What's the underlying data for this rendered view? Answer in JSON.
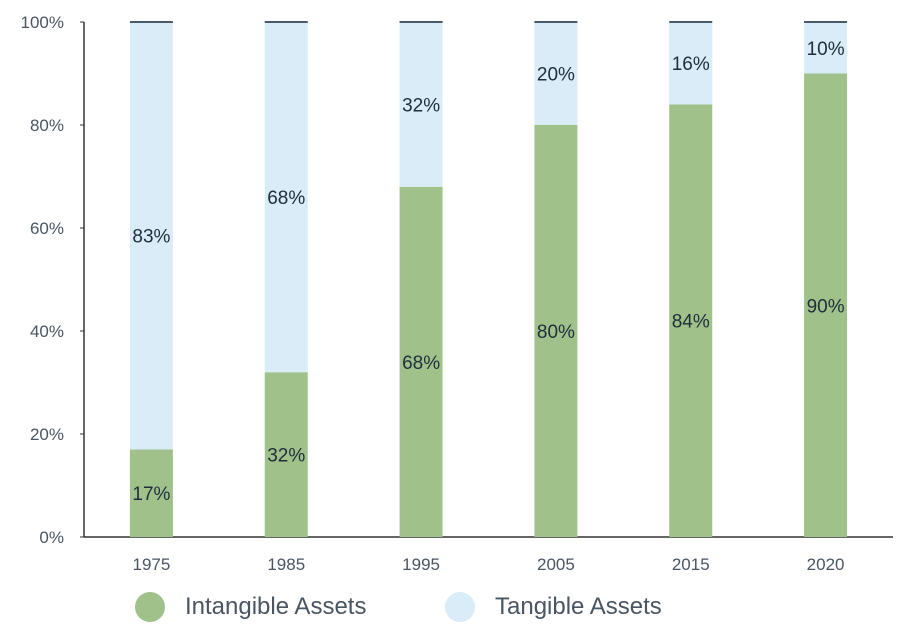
{
  "chart_data": {
    "type": "bar",
    "stacked": true,
    "title": "",
    "xlabel": "",
    "ylabel": "",
    "categories": [
      "1975",
      "1985",
      "1995",
      "2005",
      "2015",
      "2020"
    ],
    "series": [
      {
        "name": "Intangible Assets",
        "values": [
          17,
          32,
          68,
          80,
          84,
          90
        ],
        "labels": [
          "17%",
          "32%",
          "68%",
          "80%",
          "84%",
          "90%"
        ],
        "color": "#a0c28a"
      },
      {
        "name": "Tangible Assets",
        "values": [
          83,
          68,
          32,
          20,
          16,
          10
        ],
        "labels": [
          "83%",
          "68%",
          "32%",
          "20%",
          "16%",
          "10%"
        ],
        "color": "#d9ecf7"
      }
    ],
    "ylim": [
      0,
      100
    ],
    "yticks": [
      0,
      20,
      40,
      60,
      80,
      100
    ],
    "ytick_labels": [
      "0%",
      "20%",
      "40%",
      "60%",
      "80%",
      "100%"
    ],
    "grid": false,
    "legend_position": "bottom",
    "colors": {
      "axis": "#333333",
      "tick_text": "#4a5563",
      "data_label": "#1f2d3d",
      "bar_cap": "#4a5a6a"
    }
  },
  "legend": {
    "items": [
      {
        "label": "Intangible Assets",
        "color": "#a0c28a"
      },
      {
        "label": "Tangible Assets",
        "color": "#d9ecf7"
      }
    ]
  }
}
